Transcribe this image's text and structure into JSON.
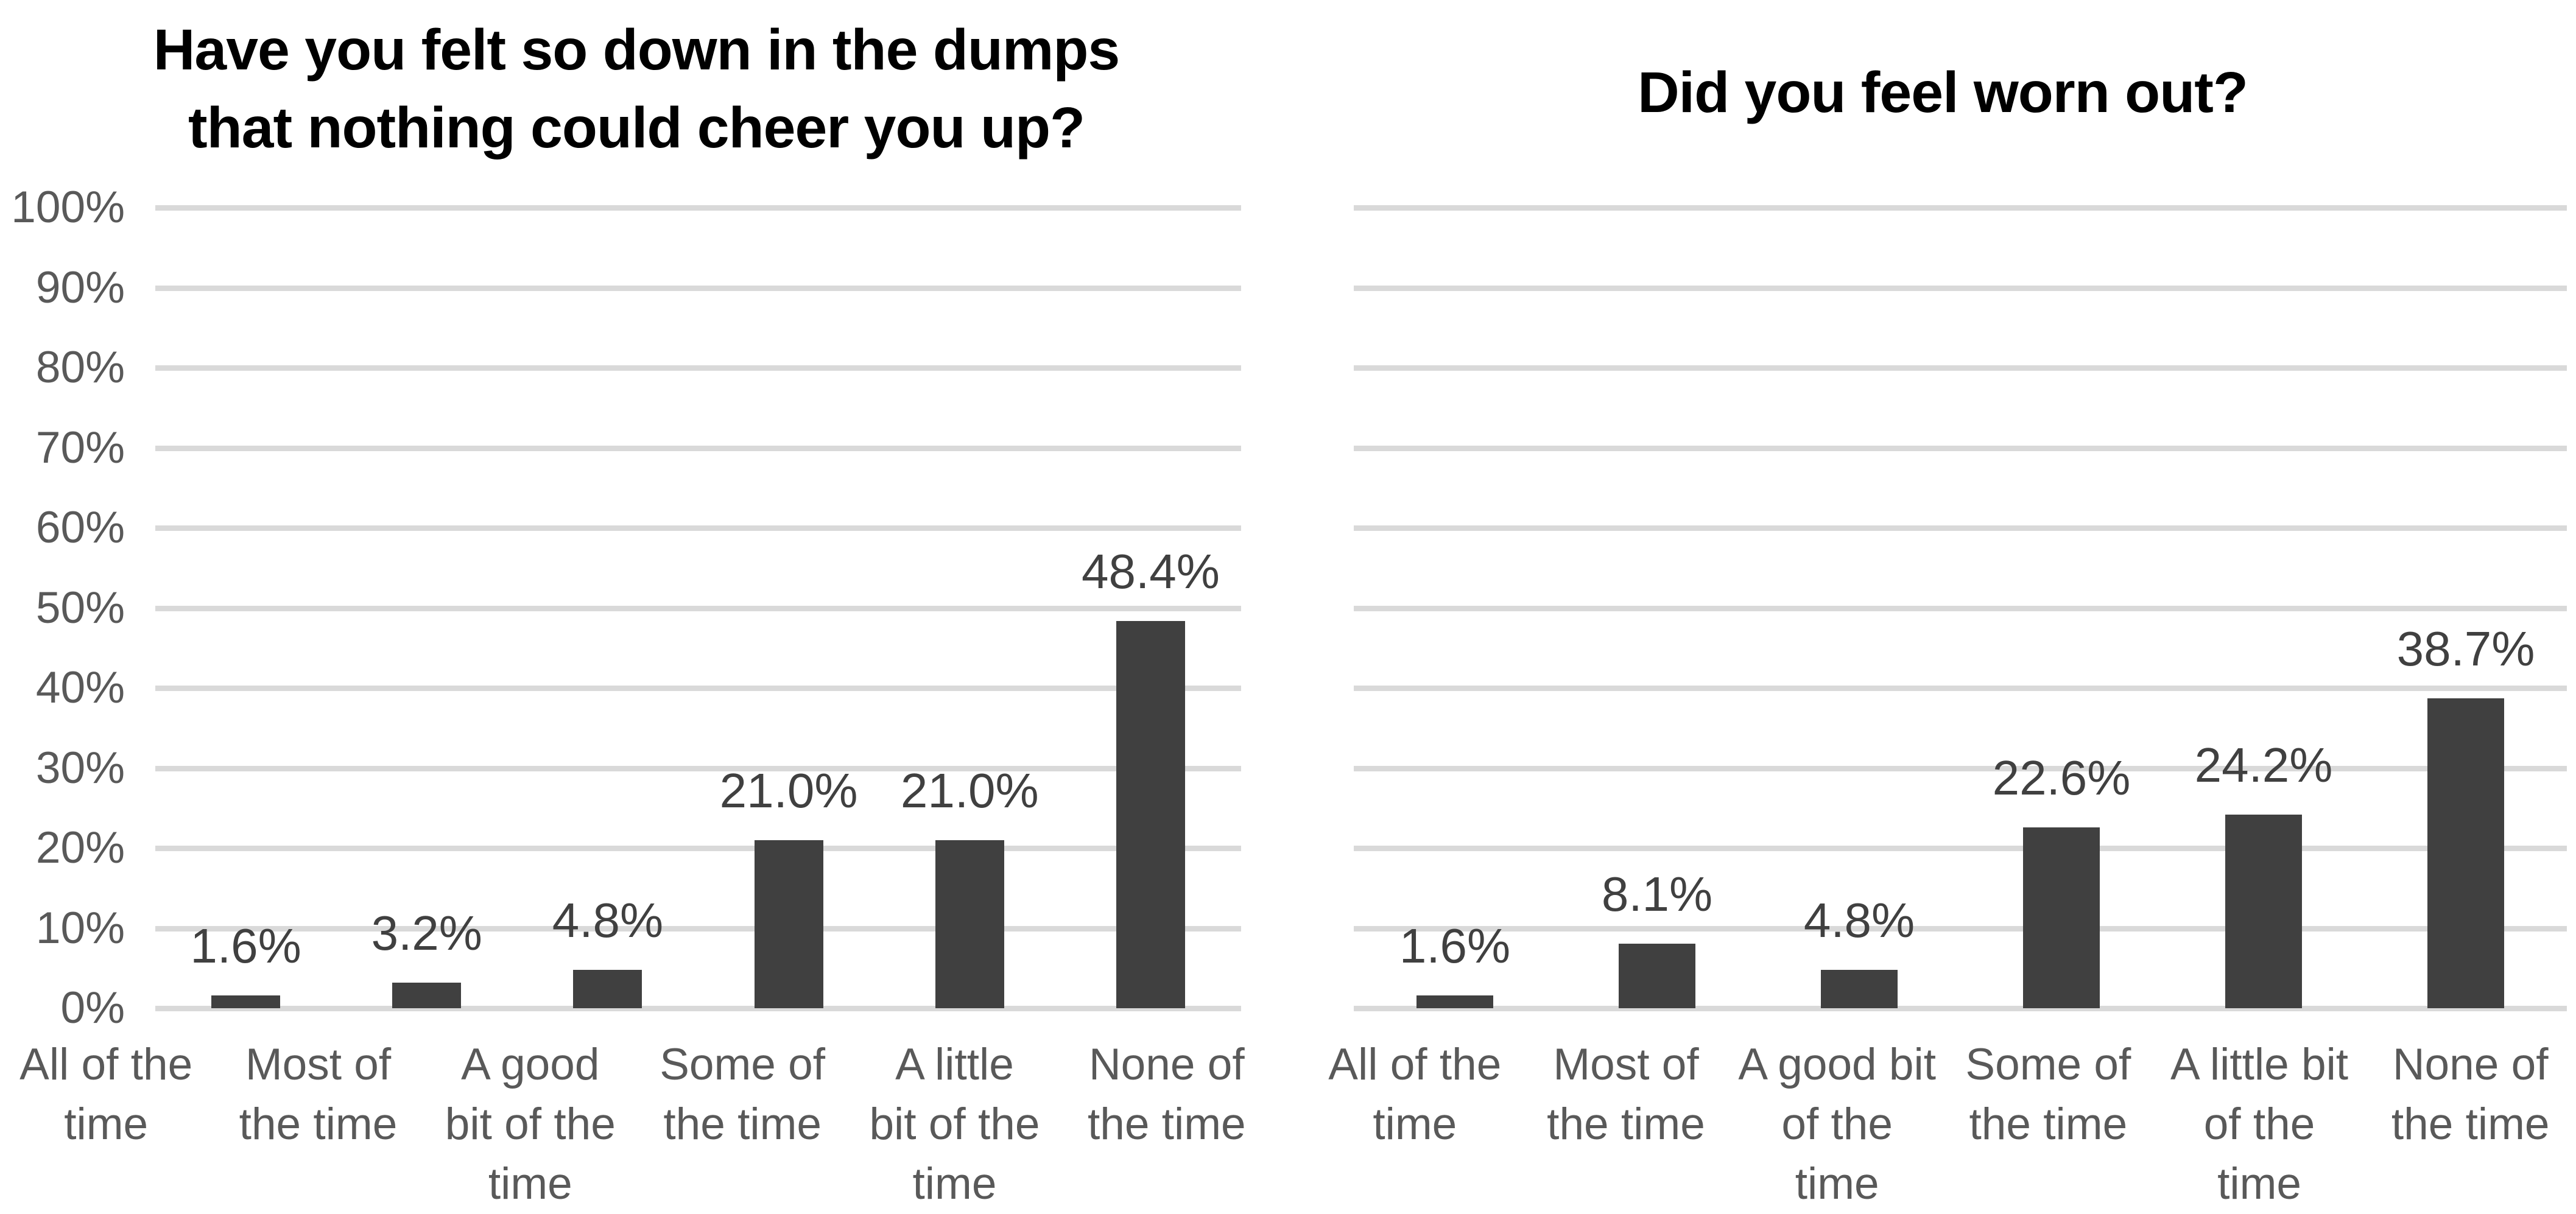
{
  "page": {
    "background": "#ffffff",
    "colors": {
      "bar_fill": "#404040",
      "gridline": "#d9d9d9",
      "axis_text": "#595959",
      "category_text": "#595959",
      "data_label_text": "#404040",
      "title_text": "#000000"
    }
  },
  "chart_data": [
    {
      "type": "bar",
      "title": "Have you felt so down in the dumps that nothing could cheer you up?",
      "title_text": "Have you felt so down in the dumps\nthat nothing could cheer you up?",
      "categories": [
        "All of the time",
        "Most of the time",
        "A good bit of the time",
        "Some of the time",
        "A little bit of the time",
        "None of the time"
      ],
      "category_label_text": [
        "All of the\ntime",
        "Most of\nthe time",
        "A good\nbit of the\ntime",
        "Some of\nthe time",
        "A little\nbit of the\ntime",
        "None of\nthe time"
      ],
      "values": [
        1.6,
        3.2,
        4.8,
        21.0,
        21.0,
        48.4
      ],
      "data_labels": [
        "1.6%",
        "3.2%",
        "4.8%",
        "21.0%",
        "21.0%",
        "48.4%"
      ],
      "xlabel": "",
      "ylabel": "",
      "ylim": [
        0,
        100
      ],
      "y_tick_step": 10,
      "y_ticks": [
        "100%",
        "90%",
        "80%",
        "70%",
        "60%",
        "50%",
        "40%",
        "30%",
        "20%",
        "10%",
        "0%"
      ],
      "y_axis_labels_visible": true,
      "grid": true,
      "legend": "none",
      "bar_color": "#404040"
    },
    {
      "type": "bar",
      "title": "Did you feel worn out?",
      "title_text": "Did you feel worn out?",
      "categories": [
        "All of the time",
        "Most of the time",
        "A good bit of the time",
        "Some of the time",
        "A little bit of the time",
        "None of the time"
      ],
      "category_label_text": [
        "All of the\ntime",
        "Most of\nthe time",
        "A good bit\nof the\ntime",
        "Some of\nthe time",
        "A little bit\nof the\ntime",
        "None of\nthe time"
      ],
      "values": [
        1.6,
        8.1,
        4.8,
        22.6,
        24.2,
        38.7
      ],
      "data_labels": [
        "1.6%",
        "8.1%",
        "4.8%",
        "22.6%",
        "24.2%",
        "38.7%"
      ],
      "xlabel": "",
      "ylabel": "",
      "ylim": [
        0,
        100
      ],
      "y_tick_step": 10,
      "y_ticks": [
        "100%",
        "90%",
        "80%",
        "70%",
        "60%",
        "50%",
        "40%",
        "30%",
        "20%",
        "10%",
        "0%"
      ],
      "y_axis_labels_visible": false,
      "grid": true,
      "legend": "none",
      "bar_color": "#404040"
    }
  ]
}
